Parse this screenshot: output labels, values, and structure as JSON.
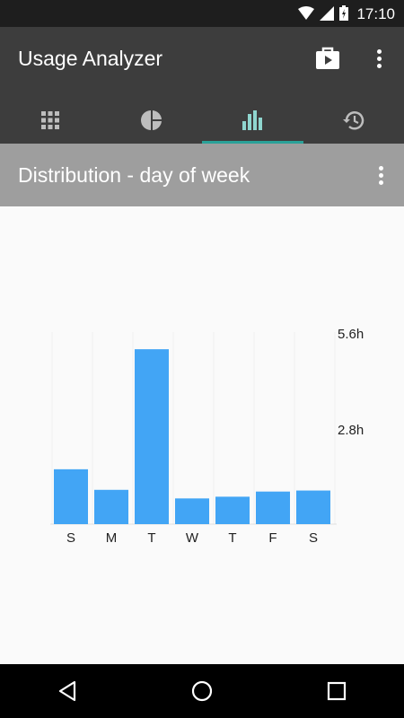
{
  "status_bar": {
    "time": "17:10"
  },
  "app_bar": {
    "title": "Usage Analyzer"
  },
  "tabs": [
    {
      "name": "grid",
      "active": false
    },
    {
      "name": "pie-chart",
      "active": false
    },
    {
      "name": "bar-chart",
      "active": true
    },
    {
      "name": "history",
      "active": false
    }
  ],
  "section": {
    "title": "Distribution - day of week"
  },
  "colors": {
    "accent": "#2aa198",
    "bar": "#42a5f5",
    "app_bar": "#3d3d3d",
    "subheader": "#9e9e9e"
  },
  "chart_data": {
    "type": "bar",
    "categories": [
      "S",
      "M",
      "T",
      "W",
      "T",
      "F",
      "S"
    ],
    "values": [
      1.6,
      1.0,
      5.1,
      0.75,
      0.8,
      0.95,
      0.98
    ],
    "yticks": [
      "2.8h",
      "5.6h"
    ],
    "ytick_values": [
      2.8,
      5.6
    ],
    "ylim": [
      0,
      5.6
    ],
    "grid": true
  }
}
